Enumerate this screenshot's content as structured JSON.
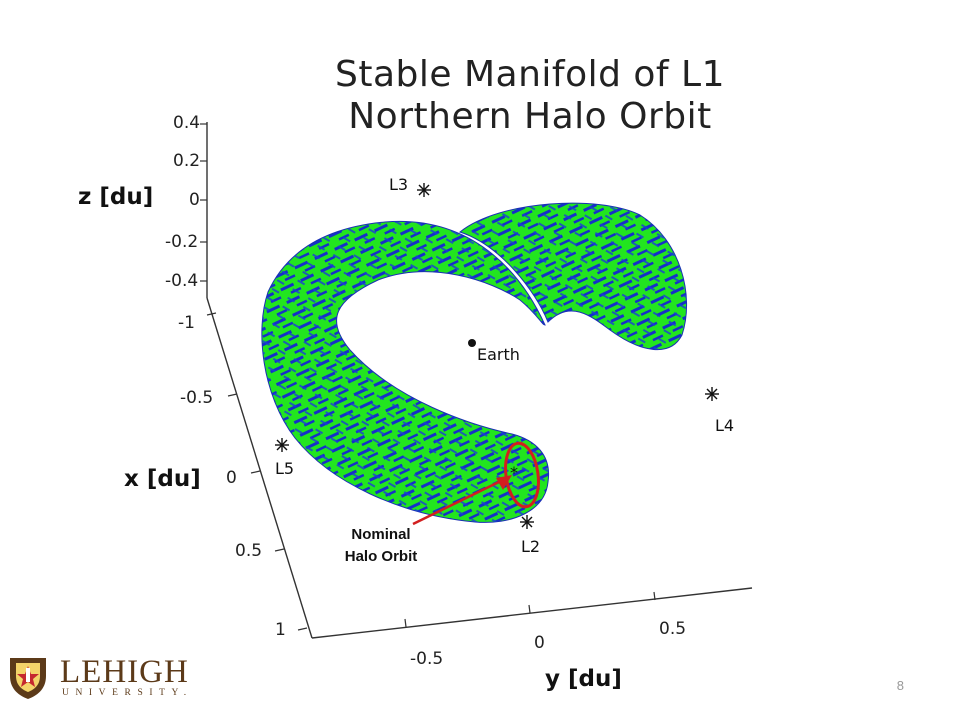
{
  "slide": {
    "title_line1": "Stable Manifold of L1",
    "title_line2": "Northern Halo Orbit",
    "page_number": "8"
  },
  "plot": {
    "z_axis": {
      "label": "z [du]",
      "ticks": [
        "0.4",
        "0.2",
        "0",
        "-0.2",
        "-0.4"
      ]
    },
    "x_axis": {
      "label": "x [du]",
      "ticks": [
        "-1",
        "-0.5",
        "0",
        "0.5",
        "1"
      ]
    },
    "y_axis": {
      "label": "y [du]",
      "ticks": [
        "-0.5",
        "0",
        "0.5"
      ]
    },
    "points": {
      "earth": "Earth",
      "l2": "L2",
      "l3": "L3",
      "l4": "L4",
      "l5": "L5"
    },
    "annotation": {
      "line1": "Nominal",
      "line2": "Halo Orbit"
    },
    "colors": {
      "manifold_green": "#22e51f",
      "manifold_blue": "#1630c8",
      "highlight_red": "#d21f1f"
    }
  },
  "logo": {
    "name": "LEHIGH",
    "subtitle": "UNIVERSITY."
  }
}
